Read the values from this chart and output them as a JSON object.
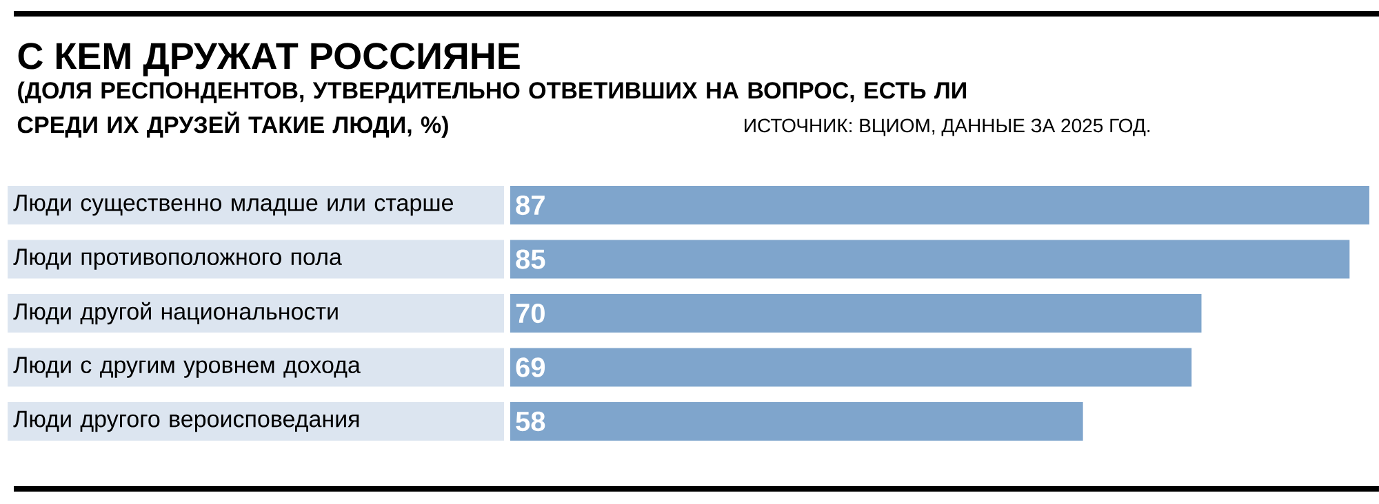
{
  "chart_data": {
    "type": "bar",
    "orientation": "horizontal",
    "title": "С КЕМ ДРУЖАТ РОССИЯНЕ",
    "subtitle": "(ДОЛЯ РЕСПОНДЕНТОВ, УТВЕРДИТЕЛЬНО ОТВЕТИВШИХ НА ВОПРОС, ЕСТЬ ЛИ СРЕДИ ИХ ДРУЗЕЙ ТАКИЕ ЛЮДИ, %)",
    "annotations": [
      "ИСТОЧНИК: ВЦИОМ, ДАННЫЕ ЗА 2025 ГОД."
    ],
    "categories": [
      "Люди существенно младше или старше",
      "Люди противоположного пола",
      "Люди другой национальности",
      "Люди с другим уровнем дохода",
      "Люди другого вероисповедания"
    ],
    "values": [
      87,
      85,
      70,
      69,
      58
    ],
    "color": "#7fa5cc",
    "xlim": [
      0,
      87
    ],
    "data_labels": true
  }
}
